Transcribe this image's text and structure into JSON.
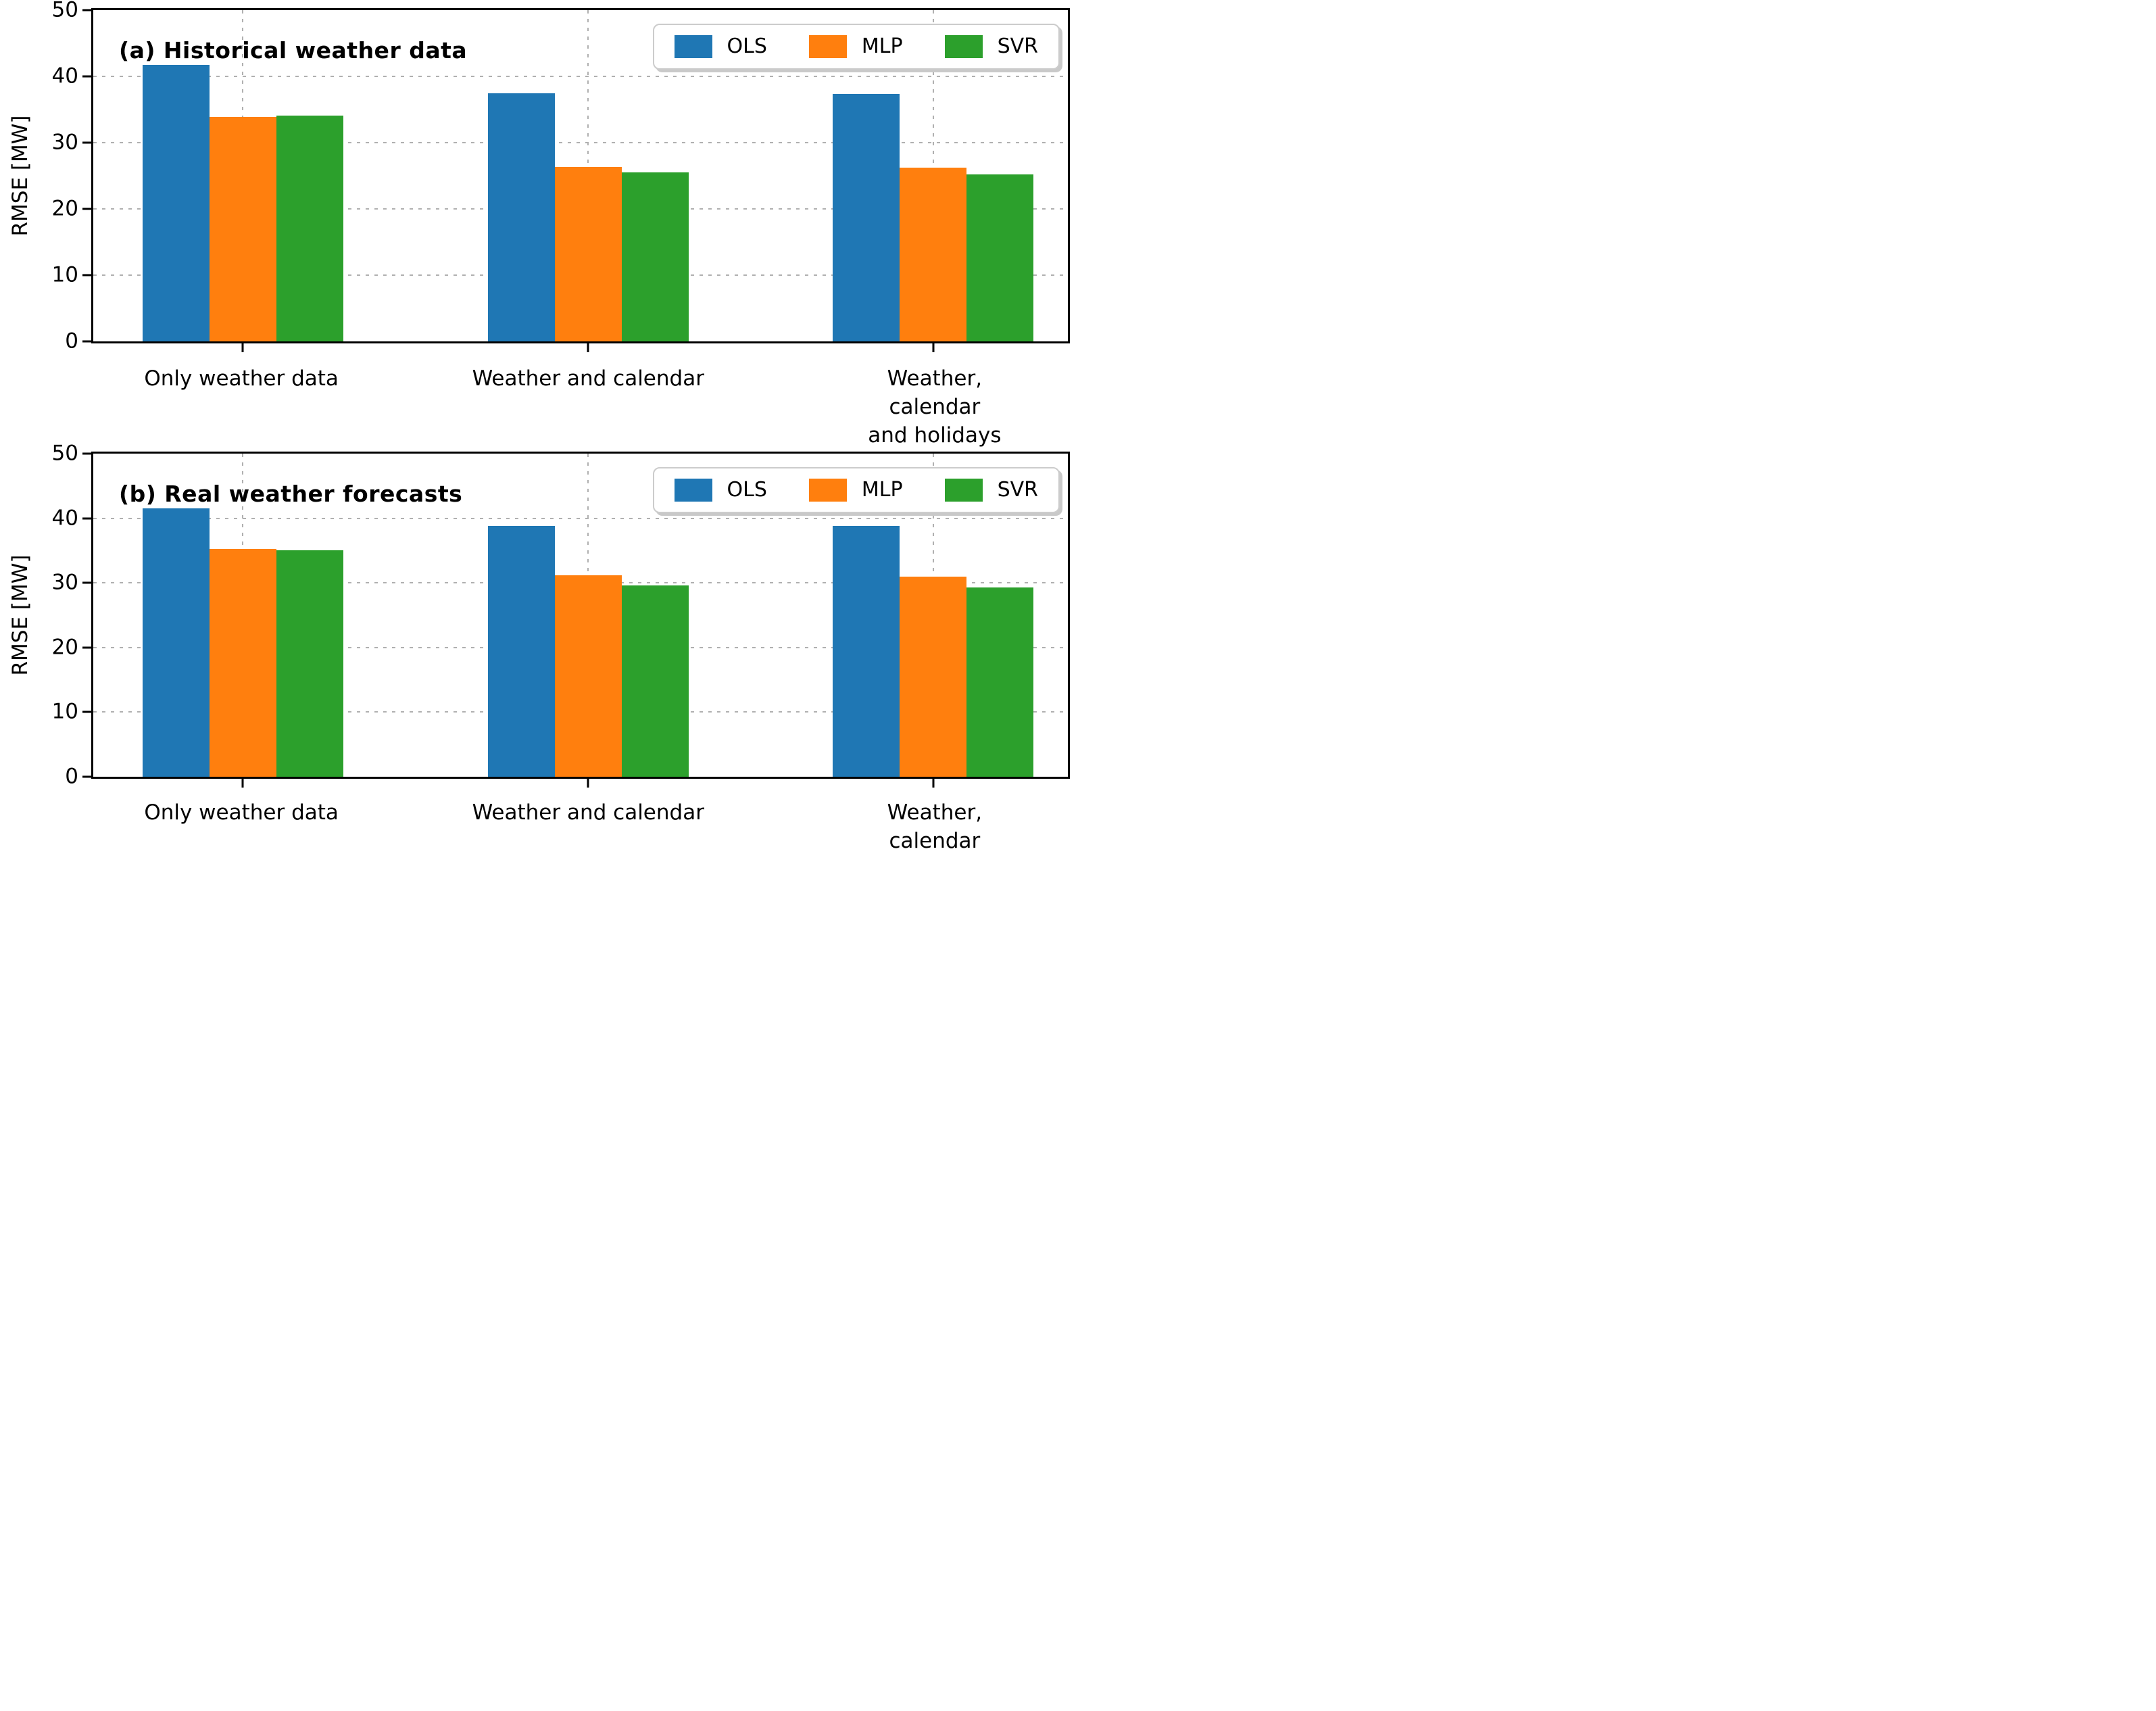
{
  "figure": {
    "ylabel": "RMSE [MW]",
    "y_ticks": [
      0,
      10,
      20,
      30,
      40,
      50
    ],
    "ylim": [
      0,
      50
    ]
  },
  "chart_data": [
    {
      "type": "bar",
      "title": "(a) Historical weather data",
      "categories": [
        "Only weather data",
        "Weather and calendar",
        "Weather, calendar\nand holidays"
      ],
      "series": [
        {
          "name": "OLS",
          "color": "#1f77b4",
          "values": [
            41.7,
            37.4,
            37.3
          ]
        },
        {
          "name": "MLP",
          "color": "#ff7f0e",
          "values": [
            33.9,
            26.3,
            26.2
          ]
        },
        {
          "name": "SVR",
          "color": "#2ca02c",
          "values": [
            34.1,
            25.5,
            25.2
          ]
        }
      ],
      "xlabel": "",
      "ylabel": "RMSE [MW]",
      "ylim": [
        0,
        50
      ],
      "grid": true,
      "grid_style": "dotted",
      "legend_position": "upper right",
      "legend": [
        "OLS",
        "MLP",
        "SVR"
      ]
    },
    {
      "type": "bar",
      "title": "(b) Real weather forecasts",
      "categories": [
        "Only weather data",
        "Weather and calendar",
        "Weather, calendar\nand holidays"
      ],
      "series": [
        {
          "name": "OLS",
          "color": "#1f77b4",
          "values": [
            41.5,
            38.8,
            38.8
          ]
        },
        {
          "name": "MLP",
          "color": "#ff7f0e",
          "values": [
            35.3,
            31.2,
            31.0
          ]
        },
        {
          "name": "SVR",
          "color": "#2ca02c",
          "values": [
            35.0,
            29.6,
            29.3
          ]
        }
      ],
      "xlabel": "",
      "ylabel": "RMSE [MW]",
      "ylim": [
        0,
        50
      ],
      "grid": true,
      "grid_style": "dotted",
      "legend_position": "upper right",
      "legend": [
        "OLS",
        "MLP",
        "SVR"
      ]
    }
  ]
}
